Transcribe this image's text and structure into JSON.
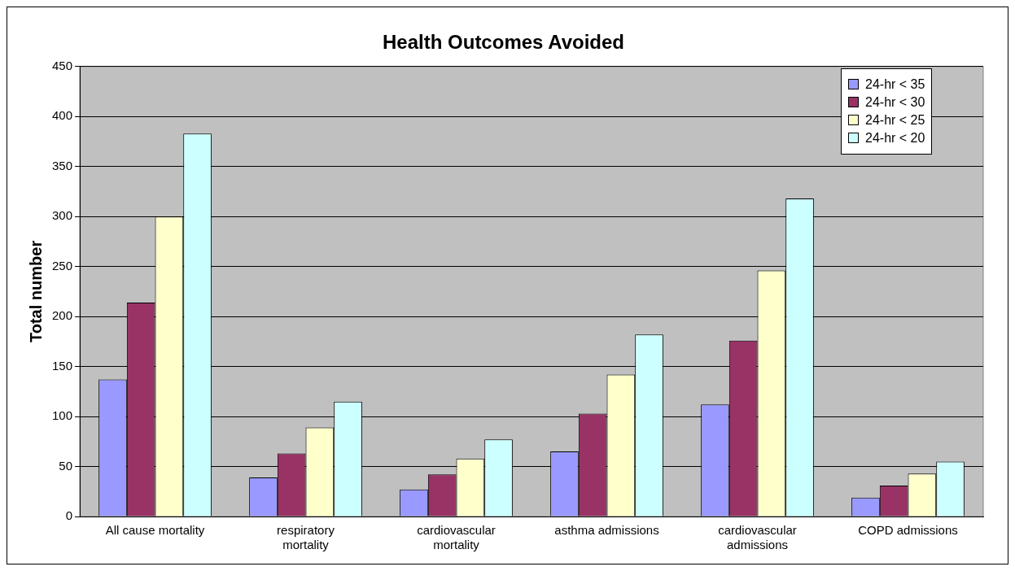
{
  "chart_data": {
    "type": "bar",
    "title": "Health Outcomes Avoided",
    "ylabel": "Total number",
    "categories": [
      "All cause mortality",
      "respiratory mortality",
      "cardiovascular mortality",
      "asthma admissions",
      "cardiovascular admissions",
      "COPD admissions"
    ],
    "series": [
      {
        "name": "24-hr < 35",
        "color": "#9999ff",
        "values": [
          137,
          39,
          27,
          65,
          112,
          19
        ]
      },
      {
        "name": "24-hr < 30",
        "color": "#993366",
        "values": [
          214,
          63,
          42,
          103,
          176,
          31
        ]
      },
      {
        "name": "24-hr < 25",
        "color": "#ffffcc",
        "values": [
          300,
          89,
          58,
          142,
          246,
          43
        ]
      },
      {
        "name": "24-hr < 20",
        "color": "#ccffff",
        "values": [
          383,
          115,
          77,
          182,
          318,
          55
        ]
      }
    ],
    "ylim": [
      0,
      450
    ],
    "yticks": [
      0,
      50,
      100,
      150,
      200,
      250,
      300,
      350,
      400,
      450
    ],
    "grid": "y",
    "legend": "top right"
  }
}
